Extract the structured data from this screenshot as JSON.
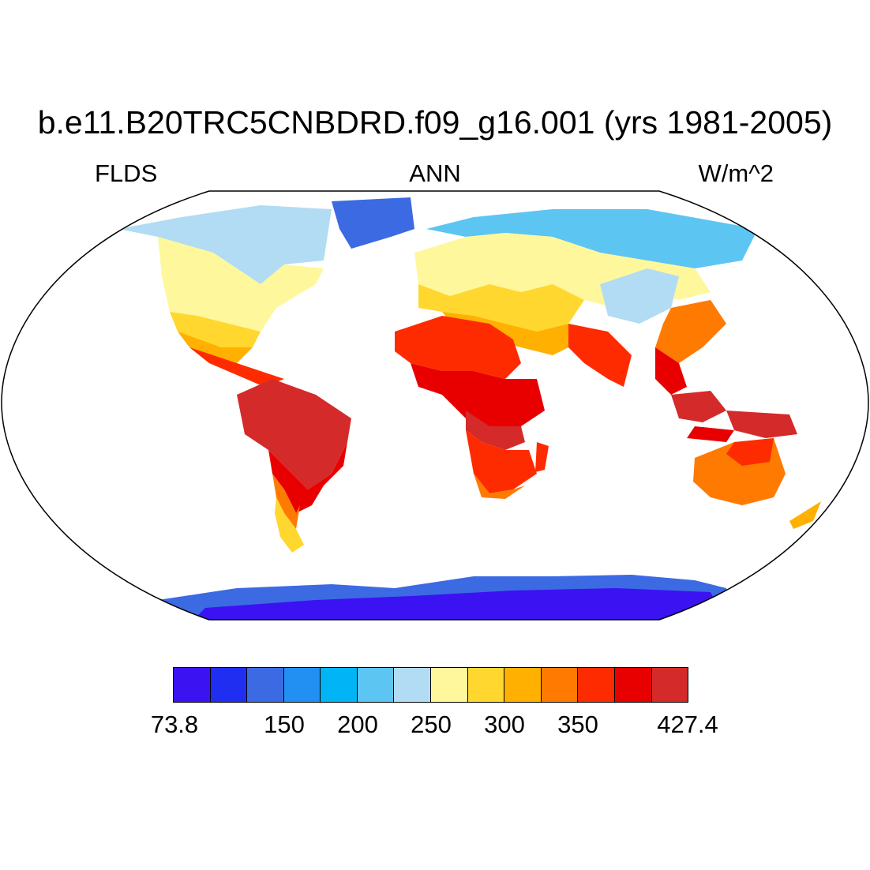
{
  "title": "b.e11.B20TRC5CNBDRD.f09_g16.001 (yrs 1981-2005)",
  "subtitle_left": "FLDS",
  "subtitle_center": "ANN",
  "subtitle_right": "W/m^2",
  "colorbar": {
    "colors": [
      "#3b12f2",
      "#1f2ef0",
      "#3c6ae3",
      "#2190f2",
      "#00b4f6",
      "#5cc5f2",
      "#b1dcf3",
      "#fff79c",
      "#ffd72e",
      "#ffb000",
      "#ff7a00",
      "#ff2b00",
      "#e80000",
      "#d42a2a"
    ],
    "labels": [
      "73.8",
      "150",
      "200",
      "250",
      "300",
      "350",
      "427.4"
    ]
  },
  "map": {
    "projection": "Robinson",
    "variable": "FLDS",
    "units": "W/m^2",
    "period": "yrs 1981-2005",
    "season": "ANN"
  }
}
